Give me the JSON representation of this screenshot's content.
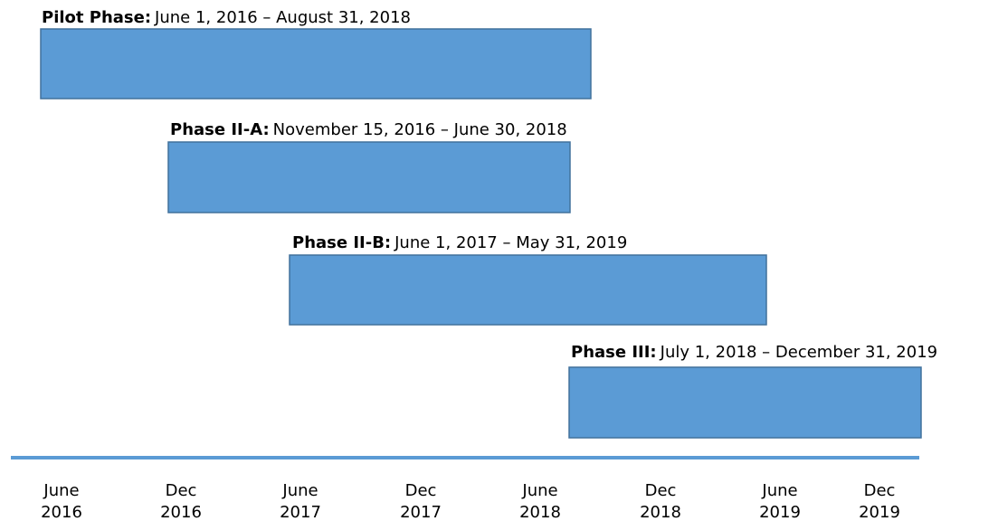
{
  "phases": [
    {
      "name": "Pilot Phase:",
      "dates": "June 1, 2016 – August 31, 2018"
    },
    {
      "name": "Phase II-A:",
      "dates": "November 15, 2016 – June 30, 2018"
    },
    {
      "name": "Phase II-B:",
      "dates": "June 1, 2017 – May 31, 2019"
    },
    {
      "name": "Phase III:",
      "dates": "July 1, 2018 – December 31, 2019"
    }
  ],
  "axis": [
    [
      "June",
      "2016"
    ],
    [
      "Dec",
      "2016"
    ],
    [
      "June",
      "2017"
    ],
    [
      "Dec",
      "2017"
    ],
    [
      "June",
      "2018"
    ],
    [
      "Dec",
      "2018"
    ],
    [
      "June",
      "2019"
    ],
    [
      "Dec",
      "2019"
    ]
  ]
}
